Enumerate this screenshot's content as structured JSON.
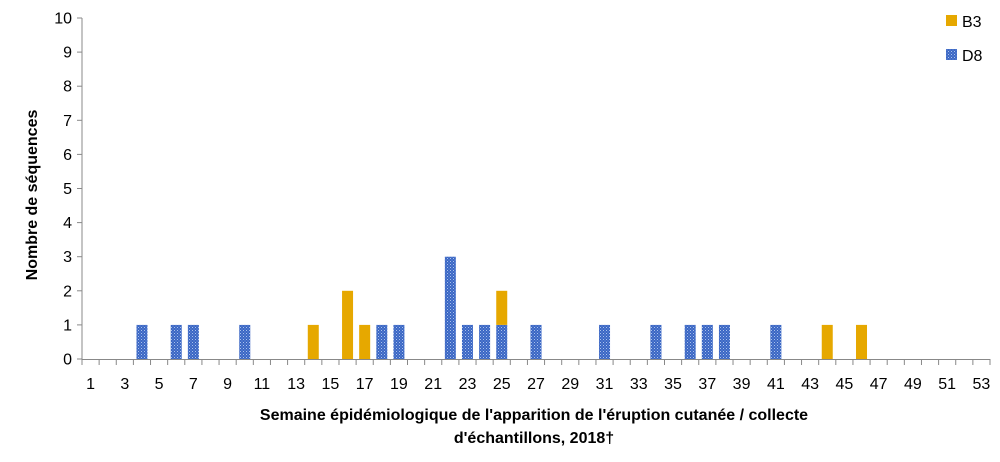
{
  "chart_data": {
    "type": "bar",
    "stacked": true,
    "x": [
      1,
      2,
      3,
      4,
      5,
      6,
      7,
      8,
      9,
      10,
      11,
      12,
      13,
      14,
      15,
      16,
      17,
      18,
      19,
      20,
      21,
      22,
      23,
      24,
      25,
      26,
      27,
      28,
      29,
      30,
      31,
      32,
      33,
      34,
      35,
      36,
      37,
      38,
      39,
      40,
      41,
      42,
      43,
      44,
      45,
      46,
      47,
      48,
      49,
      50,
      51,
      52,
      53
    ],
    "x_tick_labels": [
      "1",
      "3",
      "5",
      "7",
      "9",
      "11",
      "13",
      "15",
      "17",
      "19",
      "21",
      "23",
      "25",
      "27",
      "29",
      "31",
      "33",
      "35",
      "37",
      "39",
      "41",
      "43",
      "45",
      "47",
      "49",
      "51",
      "53"
    ],
    "series": [
      {
        "name": "D8",
        "color": "#4472C4",
        "pattern": "dotted",
        "values": [
          0,
          0,
          0,
          1,
          0,
          1,
          1,
          0,
          0,
          1,
          0,
          0,
          0,
          0,
          0,
          0,
          0,
          1,
          1,
          0,
          0,
          3,
          1,
          1,
          1,
          0,
          1,
          0,
          0,
          0,
          1,
          0,
          0,
          1,
          0,
          1,
          1,
          1,
          0,
          0,
          1,
          0,
          0,
          0,
          0,
          0,
          0,
          0,
          0,
          0,
          0,
          0,
          0
        ]
      },
      {
        "name": "B3",
        "color": "#E6A800",
        "pattern": "solid",
        "values": [
          0,
          0,
          0,
          0,
          0,
          0,
          0,
          0,
          0,
          0,
          0,
          0,
          0,
          1,
          0,
          2,
          1,
          0,
          0,
          0,
          0,
          0,
          0,
          0,
          1,
          0,
          0,
          0,
          0,
          0,
          0,
          0,
          0,
          0,
          0,
          0,
          0,
          0,
          0,
          0,
          0,
          0,
          0,
          1,
          0,
          1,
          0,
          0,
          0,
          0,
          0,
          0,
          0
        ]
      }
    ],
    "legend_order": [
      "B3",
      "D8"
    ],
    "legend_position": "top-right",
    "y_ticks": [
      "0",
      "1",
      "2",
      "3",
      "4",
      "5",
      "6",
      "7",
      "8",
      "9",
      "10"
    ],
    "ylim": [
      0,
      10
    ],
    "ylabel": "Nombre de séquences",
    "xlabel_line1": "Semaine épidémiologique de l'apparition de l'éruption cutanée / collecte",
    "xlabel_line2": "d'échantillons, 2018†",
    "grid": false
  }
}
